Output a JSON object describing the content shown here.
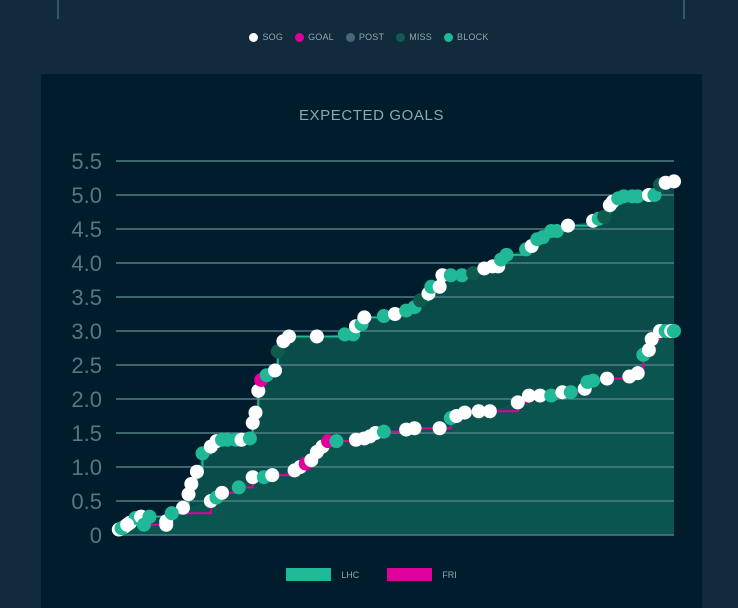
{
  "event_legend": [
    {
      "label": "SOG",
      "color": "#ffffff"
    },
    {
      "label": "GOAL",
      "color": "#e0009b"
    },
    {
      "label": "POST",
      "color": "#4a6777"
    },
    {
      "label": "MISS",
      "color": "#0f5c4f"
    },
    {
      "label": "BLOCK",
      "color": "#1fb997"
    }
  ],
  "chart_data": {
    "type": "area",
    "title": "EXPECTED GOALS",
    "xlabel": "",
    "ylabel": "",
    "y_ticks": [
      "0",
      "0.5",
      "1.0",
      "1.5",
      "2.0",
      "2.5",
      "3.0",
      "3.5",
      "4.0",
      "4.5",
      "5.0",
      "5.5"
    ],
    "ylim": [
      0,
      5.5
    ],
    "xlim": [
      0,
      1
    ],
    "grid": true,
    "legend_position": "bottom",
    "series": [
      {
        "name": "LHC",
        "color": "#1fb997",
        "fill": "#0b5550",
        "points": [
          [
            0.005,
            0.08,
            "SOG"
          ],
          [
            0.015,
            0.12,
            "SOG"
          ],
          [
            0.025,
            0.18,
            "SOG"
          ],
          [
            0.035,
            0.25,
            "BLOCK"
          ],
          [
            0.045,
            0.27,
            "SOG"
          ],
          [
            0.06,
            0.27,
            "BLOCK"
          ],
          [
            0.09,
            0.2,
            "SOG"
          ],
          [
            0.1,
            0.32,
            "BLOCK"
          ],
          [
            0.12,
            0.4,
            "SOG"
          ],
          [
            0.13,
            0.6,
            "SOG"
          ],
          [
            0.135,
            0.75,
            "SOG"
          ],
          [
            0.145,
            0.93,
            "SOG"
          ],
          [
            0.155,
            1.2,
            "BLOCK"
          ],
          [
            0.17,
            1.3,
            "SOG"
          ],
          [
            0.18,
            1.38,
            "SOG"
          ],
          [
            0.19,
            1.4,
            "BLOCK"
          ],
          [
            0.2,
            1.4,
            "BLOCK"
          ],
          [
            0.215,
            1.4,
            "BLOCK"
          ],
          [
            0.225,
            1.4,
            "SOG"
          ],
          [
            0.24,
            1.42,
            "BLOCK"
          ],
          [
            0.245,
            1.65,
            "SOG"
          ],
          [
            0.25,
            1.8,
            "SOG"
          ],
          [
            0.255,
            2.12,
            "SOG"
          ],
          [
            0.26,
            2.28,
            "GOAL"
          ],
          [
            0.27,
            2.35,
            "BLOCK"
          ],
          [
            0.285,
            2.42,
            "SOG"
          ],
          [
            0.29,
            2.7,
            "MISS"
          ],
          [
            0.3,
            2.85,
            "SOG"
          ],
          [
            0.31,
            2.92,
            "SOG"
          ],
          [
            0.36,
            2.92,
            "SOG"
          ],
          [
            0.41,
            2.95,
            "BLOCK"
          ],
          [
            0.425,
            2.95,
            "BLOCK"
          ],
          [
            0.43,
            3.07,
            "SOG"
          ],
          [
            0.44,
            3.1,
            "BLOCK"
          ],
          [
            0.445,
            3.2,
            "SOG"
          ],
          [
            0.48,
            3.22,
            "BLOCK"
          ],
          [
            0.5,
            3.25,
            "SOG"
          ],
          [
            0.52,
            3.3,
            "BLOCK"
          ],
          [
            0.535,
            3.35,
            "BLOCK"
          ],
          [
            0.545,
            3.45,
            "MISS"
          ],
          [
            0.56,
            3.55,
            "SOG"
          ],
          [
            0.565,
            3.65,
            "BLOCK"
          ],
          [
            0.58,
            3.65,
            "SOG"
          ],
          [
            0.585,
            3.82,
            "SOG"
          ],
          [
            0.6,
            3.82,
            "BLOCK"
          ],
          [
            0.62,
            3.82,
            "BLOCK"
          ],
          [
            0.64,
            3.85,
            "MISS"
          ],
          [
            0.66,
            3.92,
            "SOG"
          ],
          [
            0.675,
            3.95,
            "SOG"
          ],
          [
            0.685,
            3.95,
            "SOG"
          ],
          [
            0.69,
            4.05,
            "BLOCK"
          ],
          [
            0.7,
            4.12,
            "BLOCK"
          ],
          [
            0.735,
            4.2,
            "BLOCK"
          ],
          [
            0.745,
            4.25,
            "SOG"
          ],
          [
            0.755,
            4.35,
            "BLOCK"
          ],
          [
            0.765,
            4.38,
            "BLOCK"
          ],
          [
            0.78,
            4.47,
            "BLOCK"
          ],
          [
            0.79,
            4.47,
            "BLOCK"
          ],
          [
            0.81,
            4.55,
            "SOG"
          ],
          [
            0.855,
            4.62,
            "SOG"
          ],
          [
            0.865,
            4.65,
            "BLOCK"
          ],
          [
            0.875,
            4.68,
            "MISS"
          ],
          [
            0.885,
            4.85,
            "SOG"
          ],
          [
            0.89,
            4.9,
            "SOG"
          ],
          [
            0.9,
            4.95,
            "BLOCK"
          ],
          [
            0.91,
            4.98,
            "BLOCK"
          ],
          [
            0.925,
            4.98,
            "BLOCK"
          ],
          [
            0.935,
            4.98,
            "BLOCK"
          ],
          [
            0.955,
            5.0,
            "SOG"
          ],
          [
            0.965,
            5.0,
            "BLOCK"
          ],
          [
            0.975,
            5.15,
            "MISS"
          ],
          [
            0.985,
            5.18,
            "SOG"
          ],
          [
            1.0,
            5.2,
            "SOG"
          ]
        ]
      },
      {
        "name": "FRI",
        "color": "#e0009b",
        "fill": "#0b5550",
        "points": [
          [
            0.01,
            0.1,
            "BLOCK"
          ],
          [
            0.02,
            0.15,
            "SOG"
          ],
          [
            0.05,
            0.15,
            "BLOCK"
          ],
          [
            0.09,
            0.15,
            "SOG"
          ],
          [
            0.1,
            0.32,
            "BLOCK"
          ],
          [
            0.17,
            0.5,
            "SOG"
          ],
          [
            0.18,
            0.55,
            "BLOCK"
          ],
          [
            0.19,
            0.62,
            "SOG"
          ],
          [
            0.22,
            0.7,
            "BLOCK"
          ],
          [
            0.245,
            0.85,
            "SOG"
          ],
          [
            0.265,
            0.85,
            "BLOCK"
          ],
          [
            0.28,
            0.88,
            "SOG"
          ],
          [
            0.32,
            0.95,
            "SOG"
          ],
          [
            0.33,
            1.0,
            "SOG"
          ],
          [
            0.34,
            1.05,
            "GOAL"
          ],
          [
            0.35,
            1.1,
            "SOG"
          ],
          [
            0.36,
            1.22,
            "SOG"
          ],
          [
            0.37,
            1.3,
            "SOG"
          ],
          [
            0.38,
            1.38,
            "GOAL"
          ],
          [
            0.395,
            1.38,
            "BLOCK"
          ],
          [
            0.43,
            1.4,
            "SOG"
          ],
          [
            0.445,
            1.42,
            "SOG"
          ],
          [
            0.455,
            1.45,
            "SOG"
          ],
          [
            0.465,
            1.5,
            "SOG"
          ],
          [
            0.48,
            1.52,
            "BLOCK"
          ],
          [
            0.52,
            1.55,
            "SOG"
          ],
          [
            0.535,
            1.57,
            "SOG"
          ],
          [
            0.58,
            1.57,
            "SOG"
          ],
          [
            0.6,
            1.72,
            "BLOCK"
          ],
          [
            0.61,
            1.75,
            "SOG"
          ],
          [
            0.625,
            1.8,
            "SOG"
          ],
          [
            0.65,
            1.82,
            "SOG"
          ],
          [
            0.67,
            1.82,
            "SOG"
          ],
          [
            0.72,
            1.95,
            "SOG"
          ],
          [
            0.74,
            2.05,
            "SOG"
          ],
          [
            0.76,
            2.05,
            "SOG"
          ],
          [
            0.78,
            2.05,
            "BLOCK"
          ],
          [
            0.8,
            2.1,
            "SOG"
          ],
          [
            0.815,
            2.1,
            "BLOCK"
          ],
          [
            0.84,
            2.15,
            "SOG"
          ],
          [
            0.845,
            2.25,
            "BLOCK"
          ],
          [
            0.855,
            2.27,
            "BLOCK"
          ],
          [
            0.88,
            2.3,
            "SOG"
          ],
          [
            0.92,
            2.33,
            "SOG"
          ],
          [
            0.935,
            2.38,
            "SOG"
          ],
          [
            0.945,
            2.65,
            "BLOCK"
          ],
          [
            0.955,
            2.72,
            "SOG"
          ],
          [
            0.96,
            2.88,
            "SOG"
          ],
          [
            0.975,
            3.0,
            "SOG"
          ],
          [
            0.985,
            3.0,
            "BLOCK"
          ],
          [
            0.995,
            3.0,
            "SOG"
          ],
          [
            1.0,
            3.0,
            "BLOCK"
          ]
        ]
      }
    ]
  }
}
